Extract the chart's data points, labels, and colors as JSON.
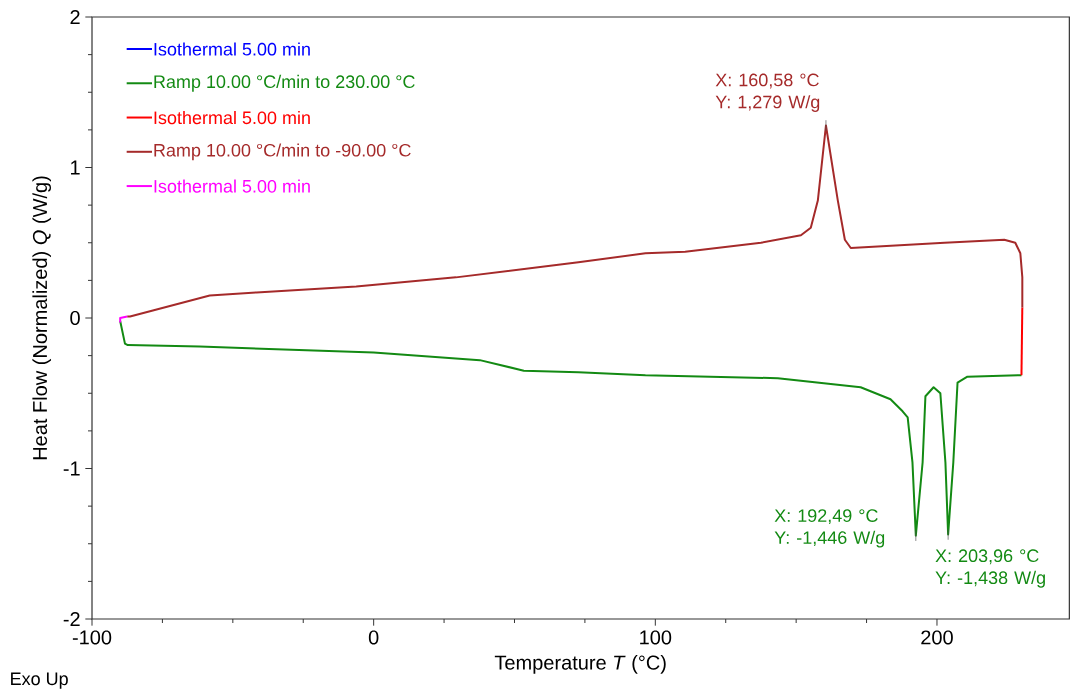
{
  "chart_data": {
    "type": "line",
    "xlabel": "Temperature *T* (°C)",
    "ylabel": "Heat Flow (Normalized)  *Q* (W/g)",
    "xlim": [
      -100,
      247
    ],
    "ylim": [
      -2,
      2
    ],
    "xticks": [
      -100,
      0,
      100,
      200
    ],
    "yticks": [
      -2,
      -1,
      0,
      1,
      2
    ],
    "legend": "top left",
    "series": [
      {
        "name": "Isothermal 5.00 min",
        "color": "#0000ff"
      },
      {
        "name": "Ramp 10.00 °C/min to 230.00 °C",
        "color": "#138a13",
        "x": [
          -90,
          -88.3,
          -87.3,
          -61.8,
          0,
          37.7,
          53.3,
          72.7,
          96.5,
          143.5,
          172.9,
          183.5,
          187.8,
          189.6,
          191.3,
          192.49,
          194.9,
          195.9,
          198.8,
          201.2,
          203,
          203.96,
          205.8,
          207.3,
          210.8,
          229.2,
          230
        ],
        "values": [
          -0.02,
          -0.17,
          -0.18,
          -0.19,
          -0.23,
          -0.28,
          -0.35,
          -0.36,
          -0.38,
          -0.4,
          -0.46,
          -0.54,
          -0.62,
          -0.66,
          -0.96,
          -1.446,
          -0.96,
          -0.52,
          -0.46,
          -0.5,
          -0.96,
          -1.438,
          -0.96,
          -0.43,
          -0.39,
          -0.38,
          -0.38
        ]
      },
      {
        "name": "Isothermal 5.00 min",
        "color": "#ff0000",
        "x": [
          230,
          230.3
        ],
        "values": [
          -0.38,
          0.07
        ]
      },
      {
        "name": "Ramp 10.00 °C/min to -90.00 °C",
        "color": "#a52a2a",
        "x": [
          230.3,
          230.3,
          229.6,
          227.8,
          223.9,
          202.7,
          169.4,
          167.3,
          164.8,
          160.58,
          157.7,
          155.2,
          151.7,
          137.5,
          110.6,
          96.5,
          72.7,
          29.2,
          -6.2,
          -41.6,
          -58.2,
          -78.4,
          -86.5,
          -87.5
        ],
        "values": [
          0.07,
          0.27,
          0.43,
          0.5,
          0.52,
          0.5,
          0.465,
          0.52,
          0.78,
          1.279,
          0.78,
          0.6,
          0.55,
          0.5,
          0.44,
          0.43,
          0.37,
          0.27,
          0.21,
          0.17,
          0.15,
          0.05,
          0.01,
          0.01
        ]
      },
      {
        "name": "Isothermal 5.00 min",
        "color": "#ff00ff",
        "x": [
          -87.5,
          -90,
          -90
        ],
        "values": [
          0.01,
          0.0,
          -0.03
        ]
      }
    ],
    "annotations": [
      {
        "text": "X: 160,58 °C Y: 1,279 W/g",
        "x": 160.58,
        "y": 1.279
      },
      {
        "text": "X: 192,49 °C Y: -1,446 W/g",
        "x": 192.49,
        "y": -1.446
      },
      {
        "text": "X: 203,96 °C Y: -1,438 W/g",
        "x": 203.96,
        "y": -1.438
      },
      "Exo Up"
    ]
  }
}
